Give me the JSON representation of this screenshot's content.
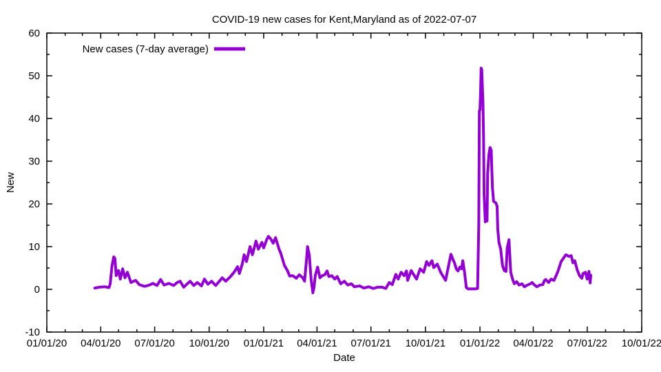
{
  "page": {
    "background": "#ffffff",
    "text_color": "#000000",
    "border_color": "#000000"
  },
  "title": "COVID-19 new cases for Kent,Maryland as of 2022-07-07",
  "legend": {
    "label": "New cases (7-day average)",
    "line_color": "#9400d3",
    "position": "top-left-inside"
  },
  "chart_data": {
    "type": "line",
    "title": "COVID-19 new cases for Kent,Maryland as of 2022-07-07",
    "xlabel": "Date",
    "ylabel": "New",
    "grid": false,
    "x_range": [
      "2020-01-01",
      "2022-10-01"
    ],
    "ylim": [
      -10,
      60
    ],
    "y_major_ticks": [
      -10,
      0,
      10,
      20,
      30,
      40,
      50,
      60
    ],
    "y_minor_step": 5,
    "x_major_ticks": [
      {
        "label": "01/01/20",
        "date": "2020-01-01"
      },
      {
        "label": "04/01/20",
        "date": "2020-04-01"
      },
      {
        "label": "07/01/20",
        "date": "2020-07-01"
      },
      {
        "label": "10/01/20",
        "date": "2020-10-01"
      },
      {
        "label": "01/01/21",
        "date": "2021-01-01"
      },
      {
        "label": "04/01/21",
        "date": "2021-04-01"
      },
      {
        "label": "07/01/21",
        "date": "2021-07-01"
      },
      {
        "label": "10/01/21",
        "date": "2021-10-01"
      },
      {
        "label": "01/01/22",
        "date": "2022-01-01"
      },
      {
        "label": "04/01/22",
        "date": "2022-04-01"
      },
      {
        "label": "07/01/22",
        "date": "2022-07-01"
      },
      {
        "label": "10/01/22",
        "date": "2022-10-01"
      }
    ],
    "x_minor_ticks": "monthly",
    "series": [
      {
        "name": "New cases (7-day average)",
        "color": "#9400d3",
        "points": [
          [
            "2020-03-22",
            0.3
          ],
          [
            "2020-03-30",
            0.5
          ],
          [
            "2020-04-08",
            0.6
          ],
          [
            "2020-04-15",
            0.4
          ],
          [
            "2020-04-17",
            1.3
          ],
          [
            "2020-04-20",
            5.5
          ],
          [
            "2020-04-23",
            7.6
          ],
          [
            "2020-04-25",
            7.2
          ],
          [
            "2020-04-27",
            3.2
          ],
          [
            "2020-05-01",
            4.4
          ],
          [
            "2020-05-04",
            2.4
          ],
          [
            "2020-05-08",
            4.8
          ],
          [
            "2020-05-12",
            2.7
          ],
          [
            "2020-05-16",
            4.0
          ],
          [
            "2020-05-22",
            1.6
          ],
          [
            "2020-05-30",
            2.1
          ],
          [
            "2020-06-05",
            1.1
          ],
          [
            "2020-06-14",
            0.7
          ],
          [
            "2020-06-22",
            1.0
          ],
          [
            "2020-06-28",
            1.4
          ],
          [
            "2020-07-05",
            0.9
          ],
          [
            "2020-07-11",
            2.3
          ],
          [
            "2020-07-17",
            1.0
          ],
          [
            "2020-07-25",
            1.4
          ],
          [
            "2020-08-02",
            0.9
          ],
          [
            "2020-08-08",
            1.6
          ],
          [
            "2020-08-13",
            1.9
          ],
          [
            "2020-08-19",
            0.5
          ],
          [
            "2020-08-25",
            1.3
          ],
          [
            "2020-08-30",
            1.9
          ],
          [
            "2020-09-05",
            0.9
          ],
          [
            "2020-09-11",
            1.6
          ],
          [
            "2020-09-18",
            0.8
          ],
          [
            "2020-09-23",
            2.4
          ],
          [
            "2020-09-29",
            1.2
          ],
          [
            "2020-10-05",
            1.9
          ],
          [
            "2020-10-12",
            0.9
          ],
          [
            "2020-10-17",
            1.7
          ],
          [
            "2020-10-23",
            2.7
          ],
          [
            "2020-10-29",
            1.9
          ],
          [
            "2020-11-06",
            3.0
          ],
          [
            "2020-11-12",
            4.0
          ],
          [
            "2020-11-18",
            5.3
          ],
          [
            "2020-11-21",
            3.7
          ],
          [
            "2020-11-26",
            6.0
          ],
          [
            "2020-11-29",
            8.1
          ],
          [
            "2020-12-03",
            6.5
          ],
          [
            "2020-12-09",
            10.0
          ],
          [
            "2020-12-13",
            8.1
          ],
          [
            "2020-12-19",
            11.3
          ],
          [
            "2020-12-23",
            9.4
          ],
          [
            "2020-12-29",
            11.0
          ],
          [
            "2021-01-01",
            9.7
          ],
          [
            "2021-01-06",
            11.6
          ],
          [
            "2021-01-09",
            12.4
          ],
          [
            "2021-01-13",
            11.8
          ],
          [
            "2021-01-17",
            10.8
          ],
          [
            "2021-01-21",
            12.1
          ],
          [
            "2021-01-27",
            9.4
          ],
          [
            "2021-01-30",
            8.4
          ],
          [
            "2021-02-05",
            5.6
          ],
          [
            "2021-02-10",
            4.4
          ],
          [
            "2021-02-14",
            3.1
          ],
          [
            "2021-02-19",
            3.2
          ],
          [
            "2021-02-25",
            2.6
          ],
          [
            "2021-03-02",
            3.4
          ],
          [
            "2021-03-08",
            2.7
          ],
          [
            "2021-03-11",
            1.9
          ],
          [
            "2021-03-14",
            6.5
          ],
          [
            "2021-03-16",
            10.0
          ],
          [
            "2021-03-19",
            8.0
          ],
          [
            "2021-03-22",
            2.4
          ],
          [
            "2021-03-25",
            -0.8
          ],
          [
            "2021-03-27",
            0.5
          ],
          [
            "2021-03-29",
            3.2
          ],
          [
            "2021-04-02",
            5.2
          ],
          [
            "2021-04-06",
            2.7
          ],
          [
            "2021-04-10",
            3.2
          ],
          [
            "2021-04-14",
            3.4
          ],
          [
            "2021-04-18",
            4.3
          ],
          [
            "2021-04-21",
            3.0
          ],
          [
            "2021-04-26",
            3.2
          ],
          [
            "2021-05-01",
            2.4
          ],
          [
            "2021-05-05",
            3.0
          ],
          [
            "2021-05-11",
            1.3
          ],
          [
            "2021-05-17",
            1.9
          ],
          [
            "2021-05-23",
            1.0
          ],
          [
            "2021-05-29",
            1.3
          ],
          [
            "2021-06-03",
            0.6
          ],
          [
            "2021-06-12",
            0.8
          ],
          [
            "2021-06-19",
            0.3
          ],
          [
            "2021-06-27",
            0.6
          ],
          [
            "2021-07-05",
            0.2
          ],
          [
            "2021-07-12",
            0.5
          ],
          [
            "2021-07-20",
            0.5
          ],
          [
            "2021-07-26",
            0.2
          ],
          [
            "2021-08-01",
            1.6
          ],
          [
            "2021-08-06",
            1.1
          ],
          [
            "2021-08-12",
            3.5
          ],
          [
            "2021-08-16",
            2.4
          ],
          [
            "2021-08-21",
            4.0
          ],
          [
            "2021-08-26",
            3.2
          ],
          [
            "2021-08-30",
            4.3
          ],
          [
            "2021-09-01",
            2.1
          ],
          [
            "2021-09-07",
            4.4
          ],
          [
            "2021-09-10",
            3.7
          ],
          [
            "2021-09-16",
            2.4
          ],
          [
            "2021-09-22",
            4.8
          ],
          [
            "2021-09-28",
            4.0
          ],
          [
            "2021-10-03",
            6.5
          ],
          [
            "2021-10-07",
            5.6
          ],
          [
            "2021-10-12",
            6.7
          ],
          [
            "2021-10-15",
            5.1
          ],
          [
            "2021-10-21",
            5.9
          ],
          [
            "2021-10-27",
            3.9
          ],
          [
            "2021-11-04",
            2.1
          ],
          [
            "2021-11-09",
            5.5
          ],
          [
            "2021-11-13",
            8.2
          ],
          [
            "2021-11-17",
            6.8
          ],
          [
            "2021-11-19",
            6.2
          ],
          [
            "2021-11-22",
            4.8
          ],
          [
            "2021-11-25",
            4.3
          ],
          [
            "2021-11-28",
            5.2
          ],
          [
            "2021-12-01",
            4.8
          ],
          [
            "2021-12-03",
            6.7
          ],
          [
            "2021-12-06",
            4.0
          ],
          [
            "2021-12-09",
            0.4
          ],
          [
            "2021-12-12",
            0.1
          ],
          [
            "2021-12-18",
            0.1
          ],
          [
            "2021-12-24",
            0.1
          ],
          [
            "2021-12-28",
            0.2
          ],
          [
            "2021-12-30",
            15.0
          ],
          [
            "2021-12-31",
            41.8
          ],
          [
            "2022-01-01",
            42.0
          ],
          [
            "2022-01-02",
            46.0
          ],
          [
            "2022-01-03",
            51.8
          ],
          [
            "2022-01-04",
            51.5
          ],
          [
            "2022-01-06",
            44.0
          ],
          [
            "2022-01-07",
            36.3
          ],
          [
            "2022-01-08",
            22.3
          ],
          [
            "2022-01-10",
            15.8
          ],
          [
            "2022-01-11",
            18.8
          ],
          [
            "2022-01-13",
            16.0
          ],
          [
            "2022-01-14",
            27.1
          ],
          [
            "2022-01-16",
            31.5
          ],
          [
            "2022-01-18",
            33.2
          ],
          [
            "2022-01-20",
            32.6
          ],
          [
            "2022-01-22",
            23.9
          ],
          [
            "2022-01-24",
            20.6
          ],
          [
            "2022-01-28",
            20.2
          ],
          [
            "2022-01-30",
            19.4
          ],
          [
            "2022-01-31",
            14.2
          ],
          [
            "2022-02-02",
            11.0
          ],
          [
            "2022-02-05",
            9.4
          ],
          [
            "2022-02-08",
            5.6
          ],
          [
            "2022-02-11",
            4.4
          ],
          [
            "2022-02-14",
            4.2
          ],
          [
            "2022-02-16",
            9.7
          ],
          [
            "2022-02-19",
            11.6
          ],
          [
            "2022-02-21",
            6.3
          ],
          [
            "2022-02-22",
            4.0
          ],
          [
            "2022-02-25",
            2.4
          ],
          [
            "2022-02-28",
            1.3
          ],
          [
            "2022-03-04",
            1.8
          ],
          [
            "2022-03-08",
            1.0
          ],
          [
            "2022-03-13",
            1.3
          ],
          [
            "2022-03-17",
            0.6
          ],
          [
            "2022-03-22",
            1.0
          ],
          [
            "2022-03-27",
            1.3
          ],
          [
            "2022-03-30",
            1.6
          ],
          [
            "2022-04-03",
            1.0
          ],
          [
            "2022-04-07",
            0.6
          ],
          [
            "2022-04-12",
            1.0
          ],
          [
            "2022-04-17",
            1.1
          ],
          [
            "2022-04-20",
            2.1
          ],
          [
            "2022-04-22",
            2.3
          ],
          [
            "2022-04-27",
            1.6
          ],
          [
            "2022-05-01",
            2.4
          ],
          [
            "2022-05-06",
            2.1
          ],
          [
            "2022-05-12",
            4.0
          ],
          [
            "2022-05-18",
            6.5
          ],
          [
            "2022-05-22",
            7.3
          ],
          [
            "2022-05-26",
            8.1
          ],
          [
            "2022-05-31",
            7.7
          ],
          [
            "2022-06-04",
            7.9
          ],
          [
            "2022-06-07",
            6.2
          ],
          [
            "2022-06-10",
            6.7
          ],
          [
            "2022-06-14",
            4.6
          ],
          [
            "2022-06-18",
            3.2
          ],
          [
            "2022-06-22",
            2.6
          ],
          [
            "2022-06-24",
            3.7
          ],
          [
            "2022-06-28",
            4.0
          ],
          [
            "2022-07-01",
            2.4
          ],
          [
            "2022-07-04",
            4.2
          ],
          [
            "2022-07-06",
            1.5
          ],
          [
            "2022-07-07",
            3.3
          ]
        ]
      }
    ]
  }
}
